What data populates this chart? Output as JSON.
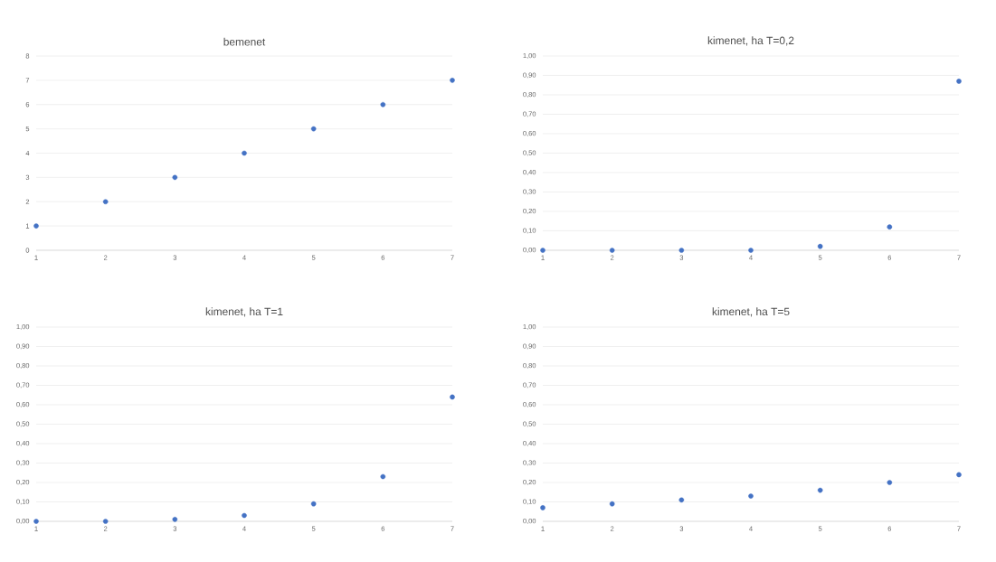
{
  "chart_data": [
    {
      "type": "scatter",
      "title": "bemenet",
      "x": [
        1,
        2,
        3,
        4,
        5,
        6,
        7
      ],
      "values": [
        1,
        2,
        3,
        4,
        5,
        6,
        7
      ],
      "color": "#4472c4",
      "marker": "circle",
      "grid": "y",
      "xlim": [
        1,
        7
      ],
      "ylim": [
        0,
        8
      ],
      "xticks": [
        1,
        2,
        3,
        4,
        5,
        6,
        7
      ],
      "yticks": [
        0,
        1,
        2,
        3,
        4,
        5,
        6,
        7,
        8
      ]
    },
    {
      "type": "scatter",
      "title": "kimenet, ha T=0,2",
      "x": [
        1,
        2,
        3,
        4,
        5,
        6,
        7
      ],
      "values": [
        0.0,
        0.0,
        0.0,
        0.0,
        0.02,
        0.12,
        0.87
      ],
      "color": "#4472c4",
      "marker": "circle",
      "grid": "y",
      "xlim": [
        1,
        7
      ],
      "ylim": [
        0,
        1
      ],
      "xticks": [
        1,
        2,
        3,
        4,
        5,
        6,
        7
      ],
      "yticks": [
        {
          "value": 0,
          "label": "0,00"
        },
        {
          "value": 0.1,
          "label": "0,10"
        },
        {
          "value": 0.2,
          "label": "0,20"
        },
        {
          "value": 0.3,
          "label": "0,30"
        },
        {
          "value": 0.4,
          "label": "0,40"
        },
        {
          "value": 0.5,
          "label": "0,50"
        },
        {
          "value": 0.6,
          "label": "0,60"
        },
        {
          "value": 0.7,
          "label": "0,70"
        },
        {
          "value": 0.8,
          "label": "0,80"
        },
        {
          "value": 0.9,
          "label": "0,90"
        },
        {
          "value": 1,
          "label": "1,00"
        }
      ]
    },
    {
      "type": "scatter",
      "title": "kimenet, ha T=1",
      "x": [
        1,
        2,
        3,
        4,
        5,
        6,
        7
      ],
      "values": [
        0.0,
        0.0,
        0.01,
        0.03,
        0.09,
        0.23,
        0.64
      ],
      "color": "#4472c4",
      "marker": "circle",
      "grid": "y",
      "xlim": [
        1,
        7
      ],
      "ylim": [
        0,
        1
      ],
      "xticks": [
        1,
        2,
        3,
        4,
        5,
        6,
        7
      ],
      "yticks": [
        {
          "value": 0,
          "label": "0,00"
        },
        {
          "value": 0.1,
          "label": "0,10"
        },
        {
          "value": 0.2,
          "label": "0,20"
        },
        {
          "value": 0.3,
          "label": "0,30"
        },
        {
          "value": 0.4,
          "label": "0,40"
        },
        {
          "value": 0.5,
          "label": "0,50"
        },
        {
          "value": 0.6,
          "label": "0,60"
        },
        {
          "value": 0.7,
          "label": "0,70"
        },
        {
          "value": 0.8,
          "label": "0,80"
        },
        {
          "value": 0.9,
          "label": "0,90"
        },
        {
          "value": 1,
          "label": "1,00"
        }
      ]
    },
    {
      "type": "scatter",
      "title": "kimenet, ha T=5",
      "x": [
        1,
        2,
        3,
        4,
        5,
        6,
        7
      ],
      "values": [
        0.07,
        0.09,
        0.11,
        0.13,
        0.16,
        0.2,
        0.24
      ],
      "color": "#4472c4",
      "marker": "circle",
      "grid": "y",
      "xlim": [
        1,
        7
      ],
      "ylim": [
        0,
        1
      ],
      "xticks": [
        1,
        2,
        3,
        4,
        5,
        6,
        7
      ],
      "yticks": [
        {
          "value": 0,
          "label": "0,00"
        },
        {
          "value": 0.1,
          "label": "0,10"
        },
        {
          "value": 0.2,
          "label": "0,20"
        },
        {
          "value": 0.3,
          "label": "0,30"
        },
        {
          "value": 0.4,
          "label": "0,40"
        },
        {
          "value": 0.5,
          "label": "0,50"
        },
        {
          "value": 0.6,
          "label": "0,60"
        },
        {
          "value": 0.7,
          "label": "0,70"
        },
        {
          "value": 0.8,
          "label": "0,80"
        },
        {
          "value": 0.9,
          "label": "0,90"
        },
        {
          "value": 1,
          "label": "1,00"
        }
      ]
    }
  ]
}
